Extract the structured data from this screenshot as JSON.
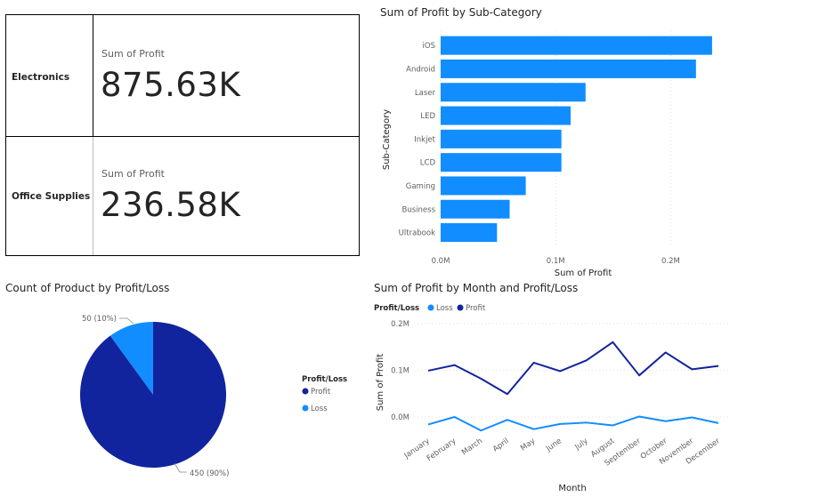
{
  "kpi_matrix": {
    "caption": "Sum of Profit",
    "rows": [
      {
        "category": "Electronics",
        "value": "875.63K"
      },
      {
        "category": "Office Supplies",
        "value": "236.58K"
      }
    ]
  },
  "colors": {
    "bar": "#118dff",
    "profit": "#12239e",
    "loss": "#118dff",
    "grid": "#e1dfdd",
    "axis_text": "#605e5c"
  },
  "chart_data": [
    {
      "type": "bar",
      "orientation": "horizontal",
      "title": "Sum of Profit by Sub-Category",
      "xlabel": "Sum of Profit",
      "ylabel": "Sub-Category",
      "categories": [
        "iOS",
        "Android",
        "Laser",
        "LED",
        "Inkjet",
        "LCD",
        "Gaming",
        "Business",
        "Ultrabook"
      ],
      "values": [
        0.236,
        0.222,
        0.126,
        0.113,
        0.105,
        0.105,
        0.074,
        0.06,
        0.049
      ],
      "xlim": [
        0,
        0.25
      ],
      "xticks": [
        0,
        0.1,
        0.2
      ],
      "xtick_labels": [
        "0.0M",
        "0.1M",
        "0.2M"
      ],
      "grid": true
    },
    {
      "type": "pie",
      "title": "Count of Product by Profit/Loss",
      "legend_title": "Profit/Loss",
      "legend_position": "right",
      "slices": [
        {
          "name": "Profit",
          "value": 450,
          "label": "450 (90%)"
        },
        {
          "name": "Loss",
          "value": 50,
          "label": "50 (10%)"
        }
      ]
    },
    {
      "type": "line",
      "title": "Sum of Profit by Month and Profit/Loss",
      "xlabel": "Month",
      "ylabel": "Sum of Profit",
      "legend_title": "Profit/Loss",
      "legend_position": "top-left",
      "categories": [
        "January",
        "February",
        "March",
        "April",
        "May",
        "June",
        "July",
        "August",
        "September",
        "October",
        "November",
        "December"
      ],
      "series": [
        {
          "name": "Loss",
          "values": [
            -0.016,
            0.0,
            -0.029,
            -0.006,
            -0.026,
            -0.015,
            -0.012,
            -0.018,
            0.001,
            -0.009,
            -0.001,
            -0.013
          ]
        },
        {
          "name": "Profit",
          "values": [
            0.099,
            0.111,
            0.082,
            0.049,
            0.116,
            0.098,
            0.121,
            0.16,
            0.089,
            0.138,
            0.102,
            0.109
          ]
        }
      ],
      "ylim": [
        -0.05,
        0.2
      ],
      "yticks": [
        0,
        0.1,
        0.2
      ],
      "ytick_labels": [
        "0.0M",
        "0.1M",
        "0.2M"
      ],
      "grid": true
    }
  ]
}
